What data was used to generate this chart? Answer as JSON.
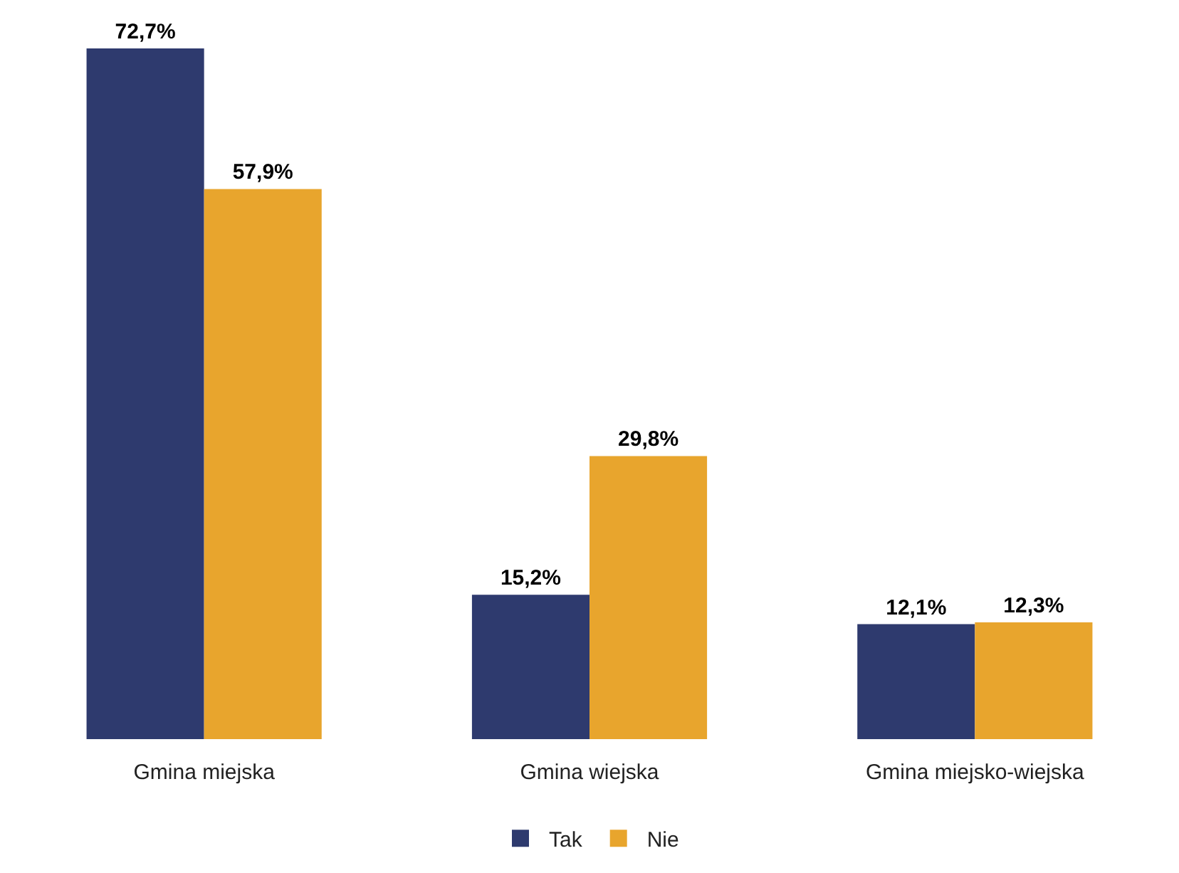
{
  "chart_data": {
    "type": "bar",
    "categories": [
      "Gmina miejska",
      "Gmina wiejska",
      "Gmina miejsko-wiejska"
    ],
    "series": [
      {
        "name": "Tak",
        "color": "#2e3a6e",
        "values": [
          72.7,
          15.2,
          12.1
        ],
        "value_labels": [
          "72,7%",
          "15,2%",
          "12,1%"
        ]
      },
      {
        "name": "Nie",
        "color": "#e8a52d",
        "values": [
          57.9,
          29.8,
          12.3
        ],
        "value_labels": [
          "57,9%",
          "29,8%",
          "12,3%"
        ]
      }
    ],
    "legend": "bottom"
  }
}
